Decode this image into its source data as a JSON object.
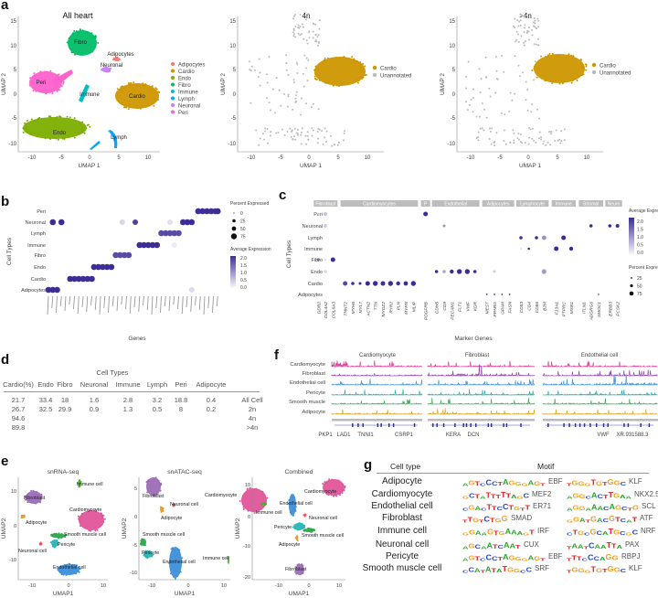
{
  "panel_labels": {
    "a": "a",
    "b": "b",
    "c": "c",
    "d": "d",
    "e": "e",
    "f": "f",
    "g": "g"
  },
  "panel_a": {
    "plots": [
      {
        "title": "All heart",
        "xlabel": "UMAP 1",
        "ylabel": "UMAP 2",
        "xticks": [
          "-10",
          "-5",
          "0",
          "5",
          "10"
        ],
        "yticks": [
          "15",
          "10",
          "5",
          "0",
          "-5",
          "-10"
        ],
        "legend": [
          {
            "label": "Adipocytes",
            "color": "#f8766d"
          },
          {
            "label": "Cardio",
            "color": "#cd9600"
          },
          {
            "label": "Endo",
            "color": "#7cae00"
          },
          {
            "label": "Fibro",
            "color": "#00be67"
          },
          {
            "label": "Immune",
            "color": "#00bfc4"
          },
          {
            "label": "Lymph",
            "color": "#00a9ff"
          },
          {
            "label": "Neuronal",
            "color": "#c77cff"
          },
          {
            "label": "Peri",
            "color": "#ff61cc"
          }
        ],
        "cluster_labels": [
          "Fibro",
          "Adipocytes",
          "Neuronal",
          "Peri",
          "Immune",
          "Cardio",
          "Endo",
          "Lymph"
        ]
      },
      {
        "title": "4n",
        "xlabel": "UMAP 1",
        "ylabel": "UMAP 2",
        "xticks": [
          "-10",
          "-5",
          "0",
          "5",
          "10"
        ],
        "yticks": [
          "15",
          "10",
          "5",
          "0",
          "-5",
          "-10"
        ],
        "legend": [
          {
            "label": "Cardio",
            "color": "#cd9600"
          },
          {
            "label": "Unannotated",
            "color": "#bbbbbb"
          }
        ]
      },
      {
        "title": ">4n",
        "xlabel": "UMAP 1",
        "ylabel": "UMAP 2",
        "xticks": [
          "-10",
          "-5",
          "0",
          "5",
          "10"
        ],
        "yticks": [
          "15",
          "10",
          "5",
          "0",
          "-5",
          "-10"
        ],
        "legend": [
          {
            "label": "Cardio",
            "color": "#cd9600"
          },
          {
            "label": "Unannotated",
            "color": "#bbbbbb"
          }
        ]
      }
    ]
  },
  "panel_b": {
    "ylabel": "Cell Types",
    "xlabel": "Genes",
    "rows": [
      "Peri",
      "Neuronal",
      "Lymph",
      "Immune",
      "Fibro",
      "Endo",
      "Cardio",
      "Adipocytes"
    ],
    "legend_size_title": "Percent Expressed",
    "size_levels": [
      "0",
      "25",
      "50",
      "75"
    ],
    "legend_color_title": "Average Expression",
    "color_levels": [
      "2.0",
      "1.5",
      "1.0",
      "0.5",
      "0.0"
    ]
  },
  "panel_c": {
    "ylabel": "Cell Types",
    "xlabel": "Marker Genes",
    "rows": [
      "Peri",
      "Neuronal",
      "Lymph",
      "Immune",
      "Fibro",
      "Endo",
      "Cardio",
      "Adipocytes"
    ],
    "groups": [
      {
        "label": "Fibroblast",
        "n": 3
      },
      {
        "label": "Cardiomyocytes",
        "n": 10
      },
      {
        "label": "P",
        "n": 1
      },
      {
        "label": "Endothelial",
        "n": 6
      },
      {
        "label": "Adipocytes",
        "n": 4
      },
      {
        "label": "Lymphocyte",
        "n": 4
      },
      {
        "label": "Immune",
        "n": 3
      },
      {
        "label": "Stromal",
        "n": 3
      },
      {
        "label": "Neuro",
        "n": 2
      }
    ],
    "genes": [
      "DDR2",
      "COL4A2",
      "COL6A3",
      "TNNT2",
      "MYH6",
      "MYL7",
      "ACTN2",
      "TTN",
      "MYOZ2",
      "RYR2",
      "PLN",
      "MYPN",
      "MLIP",
      "PDGFRB",
      "CDH5",
      "CD9",
      "PECAM1",
      "FLT1",
      "VWF",
      "KDR",
      "MEST",
      "PPARG",
      "GPAM",
      "FASN",
      "CD53",
      "CD4",
      "CD86",
      "B2M",
      "F13A1",
      "PTPRC",
      "MSR1",
      "ITLN1",
      "ADGRG6",
      "SMOC1",
      "ERBB3",
      "PCSK2"
    ],
    "legend_color_title": "Average Expression",
    "color_levels": [
      "2.0",
      "1.5",
      "1.0",
      "0.5",
      "0.0"
    ],
    "legend_size_title": "Percent Expressed",
    "size_levels": [
      "25",
      "50",
      "75"
    ]
  },
  "panel_d": {
    "title": "Cell Types",
    "headers": [
      "Cardio(%)",
      "Endo",
      "Fibro",
      "Neuronal",
      "Immune",
      "Lymph",
      "Peri",
      "Adipocyte",
      ""
    ],
    "rows": [
      [
        "21.7",
        "33.4",
        "18",
        "1.6",
        "2.8",
        "3.2",
        "18.8",
        "0.4",
        "All Cell"
      ],
      [
        "26.7",
        "32.5",
        "29.9",
        "0.9",
        "1.3",
        "0.5",
        "8",
        "0.2",
        "2n"
      ],
      [
        "94.6",
        "",
        "",
        "",
        "",
        "",
        "",
        "",
        "4n"
      ],
      [
        "89.8",
        "",
        "",
        "",
        "",
        "",
        "",
        "",
        ">4n"
      ]
    ]
  },
  "panel_e": {
    "plots": [
      {
        "title": "snRNA-seq",
        "xlabel": "UMAP1",
        "ylabel": "UMAP2",
        "xticks": [
          "-10",
          "0",
          "10"
        ],
        "yticks": [
          "10",
          "0",
          "-10"
        ],
        "labels": [
          "Immune cell",
          "Fibroblast",
          "Cardiomyocyte",
          "Adipocyte",
          "Smooth muscle cell",
          "Pericyte",
          "Neuronal cell",
          "Endothelial cell"
        ]
      },
      {
        "title": "snATAC-seq",
        "xlabel": "UMAP1",
        "ylabel": "UMAP2",
        "xticks": [
          "-10",
          "0",
          "10"
        ],
        "yticks": [
          "5",
          "0",
          "-5",
          "-10"
        ],
        "labels": [
          "Fibroblast",
          "Neuronal cell",
          "Cardiomyocyte",
          "Adipocyte",
          "Smooth muscle cell",
          "Pericyte",
          "Endothelial cell",
          "Immune cell"
        ]
      },
      {
        "title": "Combined",
        "xlabel": "UMAP1",
        "ylabel": "UMAP2",
        "xticks": [
          "-10",
          "0",
          "10"
        ],
        "yticks": [
          "10",
          "0",
          "-10",
          "-20"
        ],
        "labels": [
          "Cardiomyocyte",
          "Endothelial cell",
          "Immune cell",
          "Neuronal cell",
          "Pericyte",
          "Smooth muscle cell",
          "Adipocyte",
          "Fibroblast"
        ]
      }
    ]
  },
  "panel_f": {
    "regions": [
      "Cardiomyocyte",
      "Fibroblast",
      "Endothelial cell"
    ],
    "tracks": [
      {
        "label": "Cardiomyocyte",
        "color": "#d6338a"
      },
      {
        "label": "Fibroblast",
        "color": "#8e3fa5"
      },
      {
        "label": "Endothelial cell",
        "color": "#3a8fd6"
      },
      {
        "label": "Pericyte",
        "color": "#1aa8a0"
      },
      {
        "label": "Smooth muscle",
        "color": "#2fa84f"
      },
      {
        "label": "Adipocyte",
        "color": "#d4a017"
      }
    ],
    "genes": [
      "PKP1",
      "LAD1",
      "TNNI1",
      "CSRP1",
      "KERA",
      "DCN",
      "VWF",
      "XR.931588.3"
    ]
  },
  "panel_g": {
    "header_celltype": "Cell type",
    "header_motif": "Motif",
    "rows": [
      {
        "cell": "Adipocyte",
        "m1": "AGTCCCTAGGGAGT",
        "n1": "EBF",
        "m2": "TGGGTGTGGC",
        "n2": "KLF"
      },
      {
        "cell": "Cardiomyocyte",
        "m1": "GCTATTTTTAGC",
        "n1": "MEF2",
        "m2": "AGGCACTTGAA",
        "n2": "NKX2.5"
      },
      {
        "cell": "Endothelial cell",
        "m1": "CGACTTCCTGTT",
        "n1": "ER71",
        "m2": "AGGAAACAGCTG",
        "n2": "SCL"
      },
      {
        "cell": "Fibroblast",
        "m1": "TTGTCTGG",
        "n1": "SMAD",
        "m2": "GGATGACGTCAT",
        "n2": "ATF"
      },
      {
        "cell": "Immune cell",
        "m1": "GGAAGTGAAAGT",
        "n1": "IRF",
        "m2": "CTGCGCATGCGC",
        "n2": "NRF"
      },
      {
        "cell": "Neuronal cell",
        "m1": "AGCAATCAAT",
        "n1": "CUX",
        "m2": "TAATCAATTA",
        "n2": "PAX"
      },
      {
        "cell": "Pericyte",
        "m1": "AGTCCCTAGGGAGT",
        "n1": "EBF",
        "m2": "TTTCCCAGG",
        "n2": "RBPJ"
      },
      {
        "cell": "Smooth muscle cell",
        "m1": "CCATATATGGCC",
        "n1": "SRF",
        "m2": "TGGGTGTGGC",
        "n2": "KLF"
      }
    ]
  }
}
